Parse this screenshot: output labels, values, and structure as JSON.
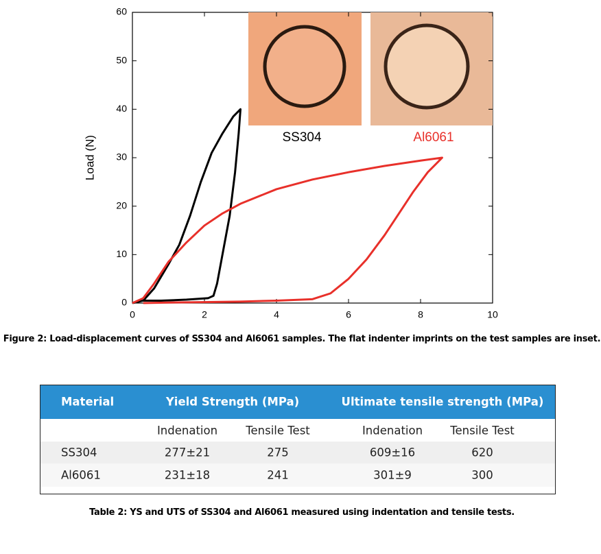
{
  "chart_data": {
    "type": "line",
    "ylabel": "Load (N)",
    "xlim": [
      0,
      10
    ],
    "ylim": [
      0,
      60
    ],
    "xticks": [
      0,
      2,
      4,
      6,
      8,
      10
    ],
    "yticks": [
      0,
      10,
      20,
      30,
      40,
      50,
      60
    ],
    "series": [
      {
        "name": "SS304",
        "color": "#000000",
        "x": [
          0,
          0.3,
          0.6,
          1,
          1.3,
          1.6,
          1.9,
          2.2,
          2.5,
          2.8,
          3.0,
          2.95,
          2.85,
          2.7,
          2.5,
          2.35,
          2.25,
          2.1,
          1.5,
          0.8,
          0.3
        ],
        "values": [
          0,
          0.5,
          3,
          8,
          12,
          18,
          25,
          31,
          35,
          38.5,
          40,
          35,
          27,
          18,
          10,
          4,
          1.5,
          1,
          0.7,
          0.5,
          0.5
        ]
      },
      {
        "name": "Al6061",
        "color": "#e8302a",
        "x": [
          0,
          0.3,
          0.6,
          1,
          1.5,
          2,
          2.5,
          3,
          4,
          5,
          6,
          7,
          8,
          8.6,
          8.2,
          7.8,
          7.4,
          7,
          6.5,
          6,
          5.5,
          5,
          4,
          3,
          2,
          1,
          0.3
        ],
        "values": [
          0,
          1,
          4,
          8.5,
          12.5,
          16,
          18.5,
          20.5,
          23.5,
          25.5,
          27,
          28.3,
          29.4,
          30,
          27,
          23,
          18.5,
          14,
          9,
          5,
          2,
          0.8,
          0.5,
          0.3,
          0.2,
          0.1,
          0
        ]
      }
    ]
  },
  "figure_caption": "Figure 2: Load-displacement curves of SS304 and Al6061 samples. The flat indenter imprints on the test samples are inset.",
  "table": {
    "header": [
      "Material",
      "Yield Strength (MPa)",
      "Ultimate tensile strength (MPa)"
    ],
    "subheader": [
      "Indenation",
      "Tensile Test",
      "Indenation",
      "Tensile Test"
    ],
    "rows": [
      [
        "SS304",
        "277±21",
        "275",
        "609±16",
        "620"
      ],
      [
        "Al6061",
        "231±18",
        "241",
        "301±9",
        "300"
      ]
    ]
  },
  "table_caption": "Table 2: YS and UTS of SS304 and Al6061 measured using indentation and tensile tests."
}
